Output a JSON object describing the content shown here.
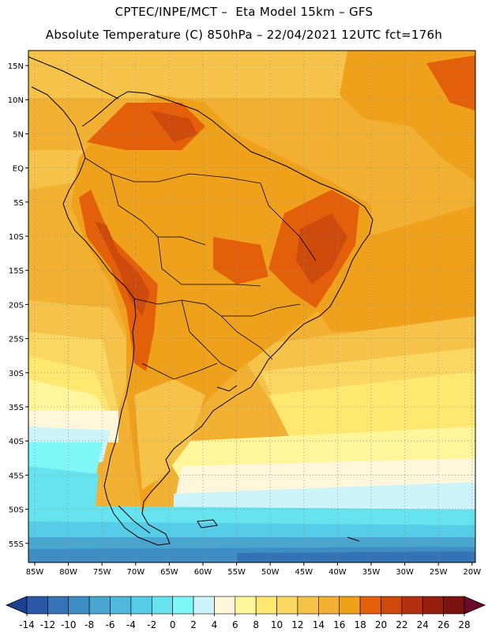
{
  "header": {
    "line1": "CPTEC/INPE/MCT –  Eta Model 15km – GFS",
    "line2": "Absolute Temperature (C) 850hPa – 22/04/2021 12UTC fct=176h"
  },
  "map": {
    "lon_labels": [
      "85W",
      "80W",
      "75W",
      "70W",
      "65W",
      "60W",
      "55W",
      "50W",
      "45W",
      "40W",
      "35W",
      "30W",
      "25W",
      "20W"
    ],
    "lat_labels": [
      "15N",
      "10N",
      "5N",
      "EQ",
      "5S",
      "10S",
      "15S",
      "20S",
      "25S",
      "30S",
      "35S",
      "40S",
      "45S",
      "50S",
      "55S"
    ]
  },
  "colorbar": {
    "labels": [
      "-14",
      "-12",
      "-10",
      "-8",
      "-6",
      "-4",
      "-2",
      "0",
      "2",
      "4",
      "6",
      "8",
      "10",
      "12",
      "14",
      "16",
      "18",
      "20",
      "22",
      "24",
      "26",
      "28"
    ],
    "colors": [
      "#1c3f8f",
      "#2a5aa6",
      "#3473b5",
      "#3e8ec4",
      "#48a6d0",
      "#50b8dc",
      "#56cce6",
      "#66e3ef",
      "#7ff6f7",
      "#cdf4fa",
      "#fff6dc",
      "#fff59a",
      "#ffe870",
      "#fad760",
      "#f5c24a",
      "#f2b133",
      "#f0a11c",
      "#e35f0a",
      "#cd4a0c",
      "#b23010",
      "#97200d",
      "#7b1411",
      "#6a0a2a"
    ]
  }
}
